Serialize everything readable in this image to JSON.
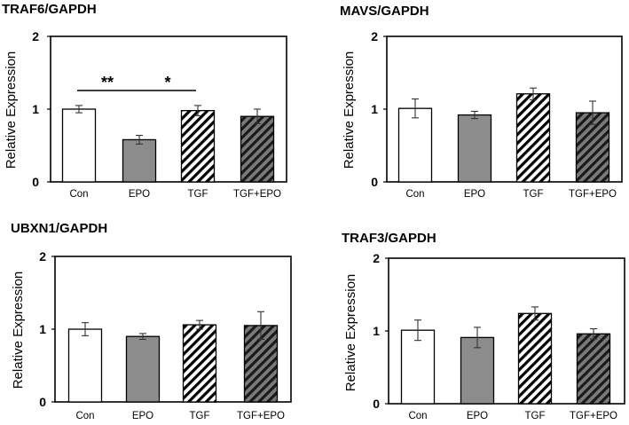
{
  "colors": {
    "white_bar": "#ffffff",
    "gray_bar": "#8c8c8c",
    "hatch_dark": "#7a7a7a",
    "axis": "#000000"
  },
  "chart_data": [
    {
      "type": "bar",
      "title": "TRAF6/GAPDH",
      "ylabel": "Relative Expression",
      "categories": [
        "Con",
        "EPO",
        "TGF",
        "TGF+EPO"
      ],
      "values": [
        1.0,
        0.58,
        0.98,
        0.9
      ],
      "errors": [
        0.05,
        0.06,
        0.07,
        0.1
      ],
      "styles": [
        "white",
        "gray",
        "hatch",
        "hatch-dark"
      ],
      "yticks": [
        "0",
        "1",
        "2"
      ],
      "ylim": [
        0,
        2
      ],
      "significance": [
        {
          "from": 0,
          "to": 1,
          "label": "**"
        },
        {
          "from": 1,
          "to": 2,
          "label": "*"
        }
      ]
    },
    {
      "type": "bar",
      "title": "MAVS/GAPDH",
      "ylabel": "Relative Expression",
      "categories": [
        "Con",
        "EPO",
        "TGF",
        "TGF+EPO"
      ],
      "values": [
        1.01,
        0.92,
        1.21,
        0.95
      ],
      "errors": [
        0.13,
        0.05,
        0.08,
        0.16
      ],
      "styles": [
        "white",
        "gray",
        "hatch",
        "hatch-dark"
      ],
      "yticks": [
        "0",
        "1",
        "2"
      ],
      "ylim": [
        0,
        2
      ],
      "significance": []
    },
    {
      "type": "bar",
      "title": "UBXN1/GAPDH",
      "ylabel": "Relative Expression",
      "categories": [
        "Con",
        "EPO",
        "TGF",
        "TGF+EPO"
      ],
      "values": [
        1.0,
        0.9,
        1.06,
        1.05
      ],
      "errors": [
        0.09,
        0.04,
        0.06,
        0.19
      ],
      "styles": [
        "white",
        "gray",
        "hatch",
        "hatch-dark"
      ],
      "yticks": [
        "0",
        "1",
        "2"
      ],
      "ylim": [
        0,
        2
      ],
      "significance": []
    },
    {
      "type": "bar",
      "title": "TRAF3/GAPDH",
      "ylabel": "Relative Expression",
      "categories": [
        "Con",
        "EPO",
        "TGF",
        "TGF+EPO"
      ],
      "values": [
        1.01,
        0.91,
        1.24,
        0.96
      ],
      "errors": [
        0.14,
        0.14,
        0.09,
        0.07
      ],
      "styles": [
        "white",
        "gray",
        "hatch",
        "hatch-dark"
      ],
      "yticks": [
        "0",
        "1",
        "2"
      ],
      "ylim": [
        0,
        2
      ],
      "significance": []
    }
  ]
}
